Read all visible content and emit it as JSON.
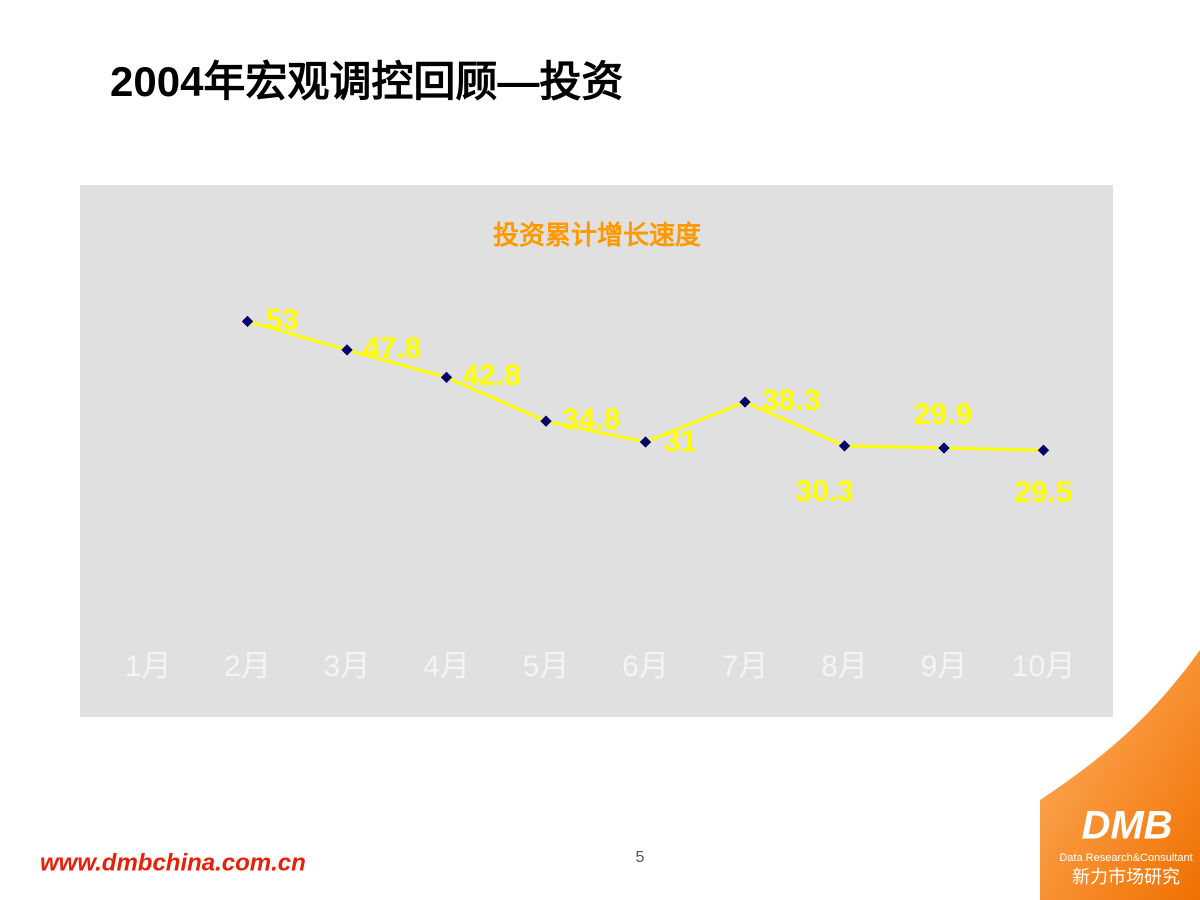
{
  "slide": {
    "title": "2004年宏观调控回顾—投资",
    "page_number": 5
  },
  "chart_data": {
    "type": "line",
    "title": "投资累计增长速度",
    "categories": [
      "1月",
      "2月",
      "3月",
      "4月",
      "5月",
      "6月",
      "7月",
      "8月",
      "9月",
      "10月"
    ],
    "values": [
      null,
      53,
      47.8,
      42.8,
      34.8,
      31,
      38.3,
      30.3,
      29.9,
      29.5
    ],
    "color": "#ffff00",
    "marker_color": "#000066",
    "label_color": "#ffff00",
    "ylim": [
      0,
      60
    ]
  },
  "footer": {
    "url": "www.dmbchina.com.cn",
    "logo": "DMB",
    "logo_tagline": "Data Research&Consultant",
    "logo_name": "新力市场研究"
  }
}
